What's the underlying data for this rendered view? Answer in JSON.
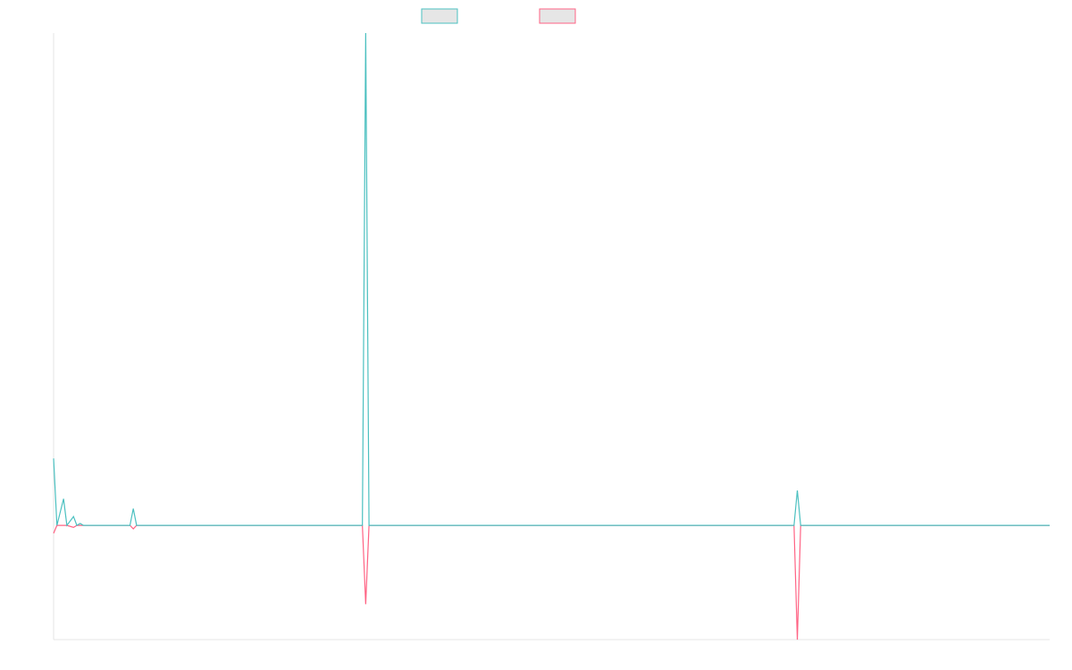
{
  "chart_data": {
    "type": "line",
    "x": [
      0,
      1,
      3,
      4,
      6,
      7,
      8,
      9,
      23,
      24,
      25,
      93,
      94,
      95,
      223,
      224,
      225,
      300
    ],
    "xlim": [
      0,
      300
    ],
    "ylim": [
      -23.2,
      100
    ],
    "series": [
      {
        "color": "#ff6384",
        "values": [
          -1.6,
          0,
          0,
          0,
          -0.4,
          0,
          0,
          0,
          0,
          -0.7,
          0,
          0,
          -16,
          0,
          0,
          -23.2,
          0,
          0
        ]
      },
      {
        "color": "#4bc0c0",
        "values": [
          13.6,
          0,
          5.4,
          0,
          1.8,
          0,
          0.4,
          0,
          0,
          3.4,
          0,
          0,
          100,
          0,
          0,
          7.1,
          0,
          0
        ]
      }
    ],
    "legend": "top"
  }
}
